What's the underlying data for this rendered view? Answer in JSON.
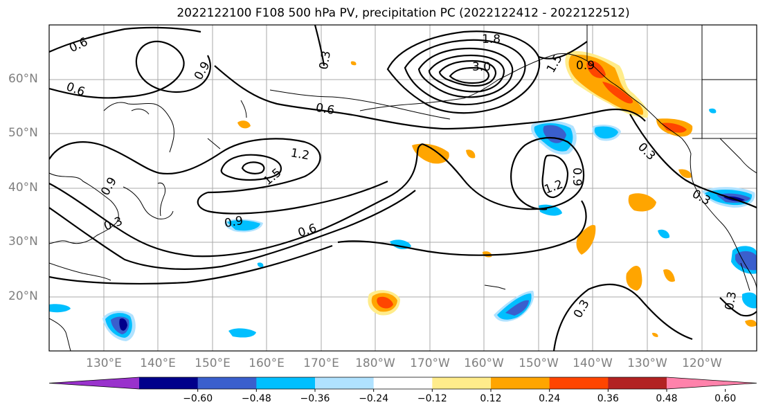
{
  "title": "2022122100 F108 500 hPa PV, precipitation PC (2022122412 - 2022122512)",
  "lat_labels": [
    "60°N",
    "50°N",
    "40°N",
    "30°N",
    "20°N"
  ],
  "lon_labels": [
    "130°E",
    "140°E",
    "150°E",
    "160°E",
    "170°E",
    "180°W",
    "170°W",
    "160°W",
    "150°W",
    "140°W",
    "130°W",
    "120°W"
  ],
  "contour_labels": [
    "0.6",
    "0.3",
    "0.9",
    "0.6",
    "0.6",
    "1.2",
    "1.5",
    "0.9",
    "0.9",
    "0.6",
    "0.3",
    "1.5",
    "1.2",
    "0.9",
    "0.3",
    "0.3",
    "0.3",
    "0.9",
    "3.0",
    "1.8"
  ],
  "colorbar": {
    "ticks": [
      "−0.60",
      "−0.48",
      "−0.36",
      "−0.24",
      "−0.12",
      "0.12",
      "0.24",
      "0.36",
      "0.48",
      "0.60"
    ],
    "colors": [
      "#9932CC",
      "#00008B",
      "#3A5FCD",
      "#00BFFF",
      "#B0E2FF",
      "#FFFFFF",
      "#FFEC8B",
      "#FFA500",
      "#FF4500",
      "#B22222",
      "#FF82AB"
    ]
  }
}
